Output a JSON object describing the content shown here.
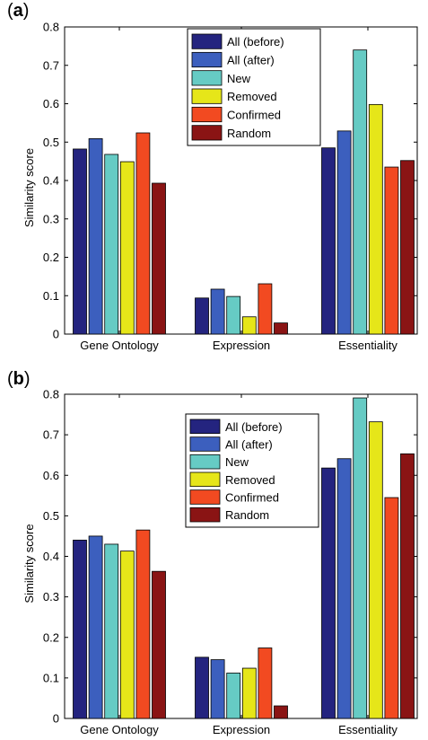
{
  "chart_data": [
    {
      "panel_label": "a",
      "type": "bar",
      "ylabel": "Similarity score",
      "xlabel": "",
      "ylim": [
        0,
        0.8
      ],
      "yticks": [
        "0",
        "0.1",
        "0.2",
        "0.3",
        "0.4",
        "0.5",
        "0.6",
        "0.7",
        "0.8"
      ],
      "categories": [
        "Gene Ontology",
        "Expression",
        "Essentiality"
      ],
      "legend_position": "top-center",
      "series": [
        {
          "name": "All (before)",
          "color": "#24247f",
          "values": [
            0.482,
            0.094,
            0.485
          ]
        },
        {
          "name": "All (after)",
          "color": "#3c5fbe",
          "values": [
            0.509,
            0.117,
            0.529
          ]
        },
        {
          "name": "New",
          "color": "#66cbc4",
          "values": [
            0.468,
            0.098,
            0.74
          ]
        },
        {
          "name": "Removed",
          "color": "#e6e619",
          "values": [
            0.449,
            0.045,
            0.598
          ]
        },
        {
          "name": "Confirmed",
          "color": "#f24a21",
          "values": [
            0.524,
            0.131,
            0.435
          ]
        },
        {
          "name": "Random",
          "color": "#8a1414",
          "values": [
            0.393,
            0.029,
            0.452
          ]
        }
      ]
    },
    {
      "panel_label": "b",
      "type": "bar",
      "ylabel": "Similarity score",
      "xlabel": "",
      "ylim": [
        0,
        0.8
      ],
      "yticks": [
        "0",
        "0.1",
        "0.2",
        "0.3",
        "0.4",
        "0.5",
        "0.6",
        "0.7",
        "0.8"
      ],
      "categories": [
        "Gene Ontology",
        "Expression",
        "Essentiality"
      ],
      "legend_position": "top-center",
      "series": [
        {
          "name": "All (before)",
          "color": "#24247f",
          "values": [
            0.44,
            0.151,
            0.618
          ]
        },
        {
          "name": "All (after)",
          "color": "#3c5fbe",
          "values": [
            0.45,
            0.145,
            0.641
          ]
        },
        {
          "name": "New",
          "color": "#66cbc4",
          "values": [
            0.43,
            0.112,
            0.791
          ]
        },
        {
          "name": "Removed",
          "color": "#e6e619",
          "values": [
            0.413,
            0.124,
            0.732
          ]
        },
        {
          "name": "Confirmed",
          "color": "#f24a21",
          "values": [
            0.465,
            0.174,
            0.545
          ]
        },
        {
          "name": "Random",
          "color": "#8a1414",
          "values": [
            0.363,
            0.031,
            0.653
          ]
        }
      ]
    }
  ]
}
